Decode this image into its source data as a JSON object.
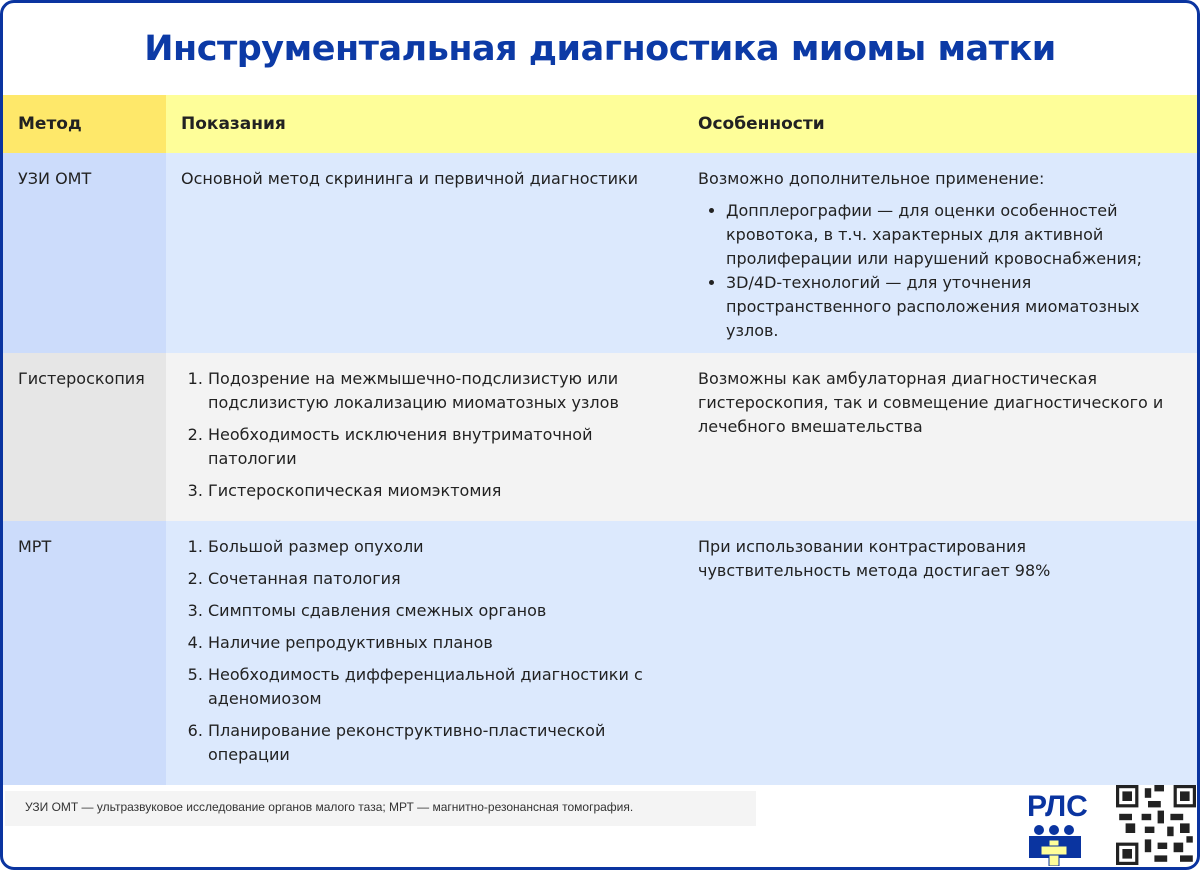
{
  "title": "Инструментальная диагностика миомы матки",
  "table": {
    "headers": [
      "Метод",
      "Показания",
      "Особенности"
    ],
    "rows": [
      {
        "method": "УЗИ ОМТ",
        "indications_text": "Основной метод скрининга и первичной диагностики",
        "features_intro": "Возможно дополнительное применение:",
        "features_bullets": [
          "Допплерографии — для оценки особенностей кровотока, в т.ч. характерных для активной пролиферации или нарушений кровоснабжения;",
          "3D/4D-технологий — для уточнения пространственного расположения миоматозных узлов."
        ]
      },
      {
        "method": "Гистероскопия",
        "indications": [
          "Подозрение на межмышечно-подслизистую или подслизистую локализацию миоматозных узлов",
          "Необходимость исключения внутриматочной патологии",
          "Гистероскопическая миомэктомия"
        ],
        "features_text": "Возможны как амбулаторная диагностическая гистероскопия, так и совмещение диагностического и лечебного вмешательства"
      },
      {
        "method": "МРТ",
        "indications": [
          "Большой размер опухоли",
          "Сочетанная патология",
          "Симптомы сдавления смежных органов",
          "Наличие репродуктивных планов",
          "Необходимость дифференциальной диагностики с аденомиозом",
          "Планирование реконструктивно-пластической операции"
        ],
        "features_text": "При использовании контрастирования чувствительность метода достигает 98%"
      }
    ]
  },
  "footnote": "УЗИ ОМТ — ультразвуковое исследование органов малого таза; МРТ — магнитно-резонансная томография.",
  "logo": {
    "text": "РЛС",
    "icon": "rls-logo"
  },
  "qr": {
    "icon": "qr-code"
  },
  "colors": {
    "accent": "#0c3aa6",
    "header_yellow": "#fefe99",
    "header_method": "#fee86a",
    "row_blue": "#dce9fd",
    "row_gray": "#f3f3f3"
  }
}
